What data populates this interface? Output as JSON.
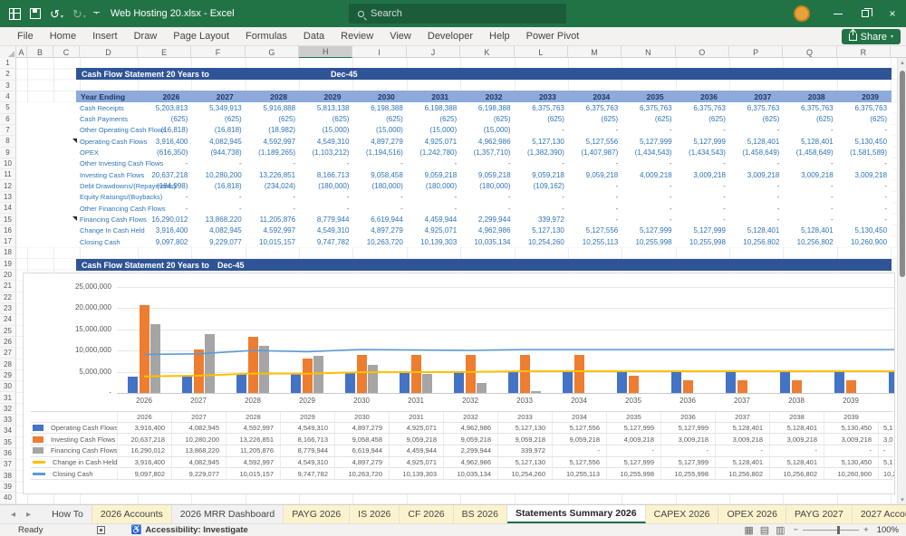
{
  "title_bar": {
    "app_title": "Web Hosting 20.xlsx - Excel",
    "search_placeholder": "Search"
  },
  "ribbon": {
    "tabs": [
      "File",
      "Home",
      "Insert",
      "Draw",
      "Page Layout",
      "Formulas",
      "Data",
      "Review",
      "View",
      "Developer",
      "Help",
      "Power Pivot"
    ],
    "share_label": "Share"
  },
  "grid": {
    "column_letters": [
      "A",
      "B",
      "C",
      "D",
      "E",
      "F",
      "G",
      "H",
      "I",
      "J",
      "K",
      "L",
      "M",
      "N",
      "O",
      "P",
      "Q",
      "R"
    ],
    "highlighted_column": "H",
    "visible_rows": 40
  },
  "statement": {
    "banner_title": "Cash Flow Statement 20 Years to",
    "banner_date": "Dec-45",
    "year_header_label": "Year Ending",
    "years": [
      "2026",
      "2027",
      "2028",
      "2029",
      "2030",
      "2031",
      "2032",
      "2033",
      "2034",
      "2035",
      "2036",
      "2037",
      "2038",
      "2039"
    ],
    "rows": [
      {
        "label": "Cash Receipts",
        "flag": false,
        "values": [
          "5,203,813",
          "5,349,913",
          "5,916,888",
          "5,813,138",
          "6,198,388",
          "6,198,388",
          "6,198,388",
          "6,375,763",
          "6,375,763",
          "6,375,763",
          "6,375,763",
          "6,375,763",
          "6,375,763",
          "6,375,763"
        ]
      },
      {
        "label": "Cash Payments",
        "flag": false,
        "values": [
          "(625)",
          "(625)",
          "(625)",
          "(625)",
          "(625)",
          "(625)",
          "(625)",
          "(625)",
          "(625)",
          "(625)",
          "(625)",
          "(625)",
          "(625)",
          "(625)"
        ]
      },
      {
        "label": "Other Operating Cash Flows",
        "flag": false,
        "values": [
          "(16,818)",
          "(16,818)",
          "(18,982)",
          "(15,000)",
          "(15,000)",
          "(15,000)",
          "(15,000)",
          "-",
          "-",
          "-",
          "-",
          "-",
          "-",
          "-"
        ]
      },
      {
        "label": "Operating Cash Flows",
        "flag": true,
        "values": [
          "3,916,400",
          "4,082,945",
          "4,592,997",
          "4,549,310",
          "4,897,279",
          "4,925,071",
          "4,962,986",
          "5,127,130",
          "5,127,556",
          "5,127,999",
          "5,127,999",
          "5,128,401",
          "5,128,401",
          "5,130,450"
        ]
      },
      {
        "label": "OPEX",
        "flag": false,
        "values": [
          "(616,350)",
          "(944,738)",
          "(1,189,265)",
          "(1,103,212)",
          "(1,194,516)",
          "(1,242,780)",
          "(1,357,710)",
          "(1,382,390)",
          "(1,407,987)",
          "(1,434,543)",
          "(1,434,543)",
          "(1,458,649)",
          "(1,458,649)",
          "(1,581,589)"
        ]
      },
      {
        "label": "Other Investing Cash Flows",
        "flag": false,
        "values": [
          "-",
          "-",
          "-",
          "-",
          "-",
          "-",
          "-",
          "-",
          "-",
          "-",
          "-",
          "-",
          "-",
          "-"
        ]
      },
      {
        "label": "Investing Cash Flows",
        "flag": false,
        "values": [
          "20,637,218",
          "10,280,200",
          "13,226,851",
          "8,166,713",
          "9,058,458",
          "9,059,218",
          "9,059,218",
          "9,059,218",
          "9,059,218",
          "4,009,218",
          "3,009,218",
          "3,009,218",
          "3,009,218",
          "3,009,218"
        ]
      },
      {
        "label": "Debt Drawdowns/(Repayments)",
        "flag": false,
        "values": [
          "(184,998)",
          "(16,818)",
          "(234,024)",
          "(180,000)",
          "(180,000)",
          "(180,000)",
          "(180,000)",
          "(109,162)",
          "-",
          "-",
          "-",
          "-",
          "-",
          "-"
        ]
      },
      {
        "label": "Equity Raisings/(Buybacks)",
        "flag": false,
        "values": [
          "-",
          "-",
          "-",
          "-",
          "-",
          "-",
          "-",
          "-",
          "-",
          "-",
          "-",
          "-",
          "-",
          "-"
        ]
      },
      {
        "label": "Other Financing Cash Flows",
        "flag": false,
        "values": [
          "-",
          "-",
          "-",
          "-",
          "-",
          "-",
          "-",
          "-",
          "-",
          "-",
          "-",
          "-",
          "-",
          "-"
        ]
      },
      {
        "label": "Financing Cash Flows",
        "flag": true,
        "values": [
          "16,290,012",
          "13,868,220",
          "11,205,876",
          "8,779,944",
          "6,619,944",
          "4,459,944",
          "2,299,944",
          "339,972",
          "-",
          "-",
          "-",
          "-",
          "-",
          "-"
        ]
      },
      {
        "label": "Change In Cash Held",
        "flag": false,
        "values": [
          "3,916,400",
          "4,082,945",
          "4,592,997",
          "4,549,310",
          "4,897,279",
          "4,925,071",
          "4,962,986",
          "5,127,130",
          "5,127,556",
          "5,127,999",
          "5,127,999",
          "5,128,401",
          "5,128,401",
          "5,130,450"
        ]
      },
      {
        "label": "Closing Cash",
        "flag": false,
        "values": [
          "9,097,802",
          "9,229,077",
          "10,015,157",
          "9,747,782",
          "10,263,720",
          "10,139,303",
          "10,035,134",
          "10,254,260",
          "10,255,113",
          "10,255,998",
          "10,255,998",
          "10,256,802",
          "10,256,802",
          "10,260,900"
        ]
      }
    ]
  },
  "chart_data": {
    "type": "bar",
    "subtype": "clustered-bar-with-lines",
    "title_banner": {
      "title": "Cash Flow Statement 20 Years to",
      "date": "Dec-45"
    },
    "categories": [
      "2026",
      "2027",
      "2028",
      "2029",
      "2030",
      "2031",
      "2032",
      "2033",
      "2034",
      "2035",
      "2036",
      "2037",
      "2038",
      "2039"
    ],
    "ylim": [
      0,
      25000000
    ],
    "ytick_labels": [
      "25,000,000",
      "20,000,000",
      "15,000,000",
      "10,000,000",
      "5,000,000",
      "-"
    ],
    "grid": true,
    "legend_position": "data-table-left",
    "series": [
      {
        "name": "Operating Cash Flows",
        "type": "bar",
        "color": "#4472C4",
        "values": [
          3916400,
          4082945,
          4592997,
          4549310,
          4897279,
          4925071,
          4962986,
          5127130,
          5127556,
          5127999,
          5127999,
          5128401,
          5128401,
          5130450
        ],
        "display_values": [
          "3,916,400",
          "4,082,945",
          "4,592,997",
          "4,549,310",
          "4,897,279",
          "4,925,071",
          "4,962,986",
          "5,127,130",
          "5,127,556",
          "5,127,999",
          "5,127,999",
          "5,128,401",
          "5,128,401",
          "5,130,450"
        ]
      },
      {
        "name": "Investing Cash Flows",
        "type": "bar",
        "color": "#ED7D31",
        "values": [
          20637218,
          10280200,
          13226851,
          8166713,
          9058458,
          9059218,
          9059218,
          9059218,
          9059218,
          4009218,
          3009218,
          3009218,
          3009218,
          3009218
        ],
        "display_values": [
          "20,637,218",
          "10,280,200",
          "13,226,851",
          "8,166,713",
          "9,058,458",
          "9,059,218",
          "9,059,218",
          "9,059,218",
          "9,059,218",
          "4,009,218",
          "3,009,218",
          "3,009,218",
          "3,009,218",
          "3,009,218"
        ]
      },
      {
        "name": "Financing Cash Flows",
        "type": "bar",
        "color": "#A5A5A5",
        "values": [
          16290012,
          13868220,
          11205876,
          8779944,
          6619944,
          4459944,
          2299944,
          339972,
          0,
          0,
          0,
          0,
          0,
          0
        ],
        "display_values": [
          "16,290,012",
          "13,868,220",
          "11,205,876",
          "8,779,944",
          "6,619,944",
          "4,459,944",
          "2,299,944",
          "339,972",
          "-",
          "-",
          "-",
          "-",
          "-",
          "-"
        ]
      },
      {
        "name": "Change in Cash Held",
        "type": "line",
        "color": "#FFC000",
        "values": [
          3916400,
          4082945,
          4592997,
          4549310,
          4897279,
          4925071,
          4962986,
          5127130,
          5127556,
          5127999,
          5127999,
          5128401,
          5128401,
          5130450
        ],
        "display_values": [
          "3,916,400",
          "4,082,945",
          "4,592,997",
          "4,549,310",
          "4,897,279",
          "4,925,071",
          "4,962,986",
          "5,127,130",
          "5,127,556",
          "5,127,999",
          "5,127,999",
          "5,128,401",
          "5,128,401",
          "5,130,450"
        ]
      },
      {
        "name": "Closing Cash",
        "type": "line",
        "color": "#5B9BD5",
        "values": [
          9097802,
          9229077,
          10015157,
          9747782,
          10263720,
          10139303,
          10035134,
          10254260,
          10255113,
          10255998,
          10255998,
          10256802,
          10256802,
          10260900
        ],
        "display_values": [
          "9,097,802",
          "9,229,077",
          "10,015,157",
          "9,747,782",
          "10,263,720",
          "10,139,303",
          "10,035,134",
          "10,254,260",
          "10,255,113",
          "10,255,998",
          "10,255,998",
          "10,256,802",
          "10,256,802",
          "10,260,900"
        ]
      }
    ],
    "partial_next_cluster": {
      "bar_operating_estimate": 5130000,
      "line_change_estimate": 5130000,
      "line_closing_estimate": 10261000,
      "table_fragments": [
        "5,1",
        "3,0",
        "-",
        "5,1",
        "10,2"
      ]
    }
  },
  "sheet_tabs": {
    "tabs": [
      {
        "label": "How To",
        "style": "normal"
      },
      {
        "label": "2026 Accounts",
        "style": "yellow"
      },
      {
        "label": "2026 MRR Dashboard",
        "style": "normal"
      },
      {
        "label": "PAYG 2026",
        "style": "yellow"
      },
      {
        "label": "IS 2026",
        "style": "yellow"
      },
      {
        "label": "CF 2026",
        "style": "yellow"
      },
      {
        "label": "BS 2026",
        "style": "yellow"
      },
      {
        "label": "Statements Summary 2026",
        "style": "active"
      },
      {
        "label": "CAPEX 2026",
        "style": "yellow"
      },
      {
        "label": "OPEX 2026",
        "style": "yellow"
      },
      {
        "label": "PAYG 2027",
        "style": "yellow"
      },
      {
        "label": "2027 Accou",
        "style": "yellow"
      }
    ]
  },
  "status_bar": {
    "mode": "Ready",
    "accessibility": "Accessibility: Investigate",
    "zoom_level": "100%"
  }
}
